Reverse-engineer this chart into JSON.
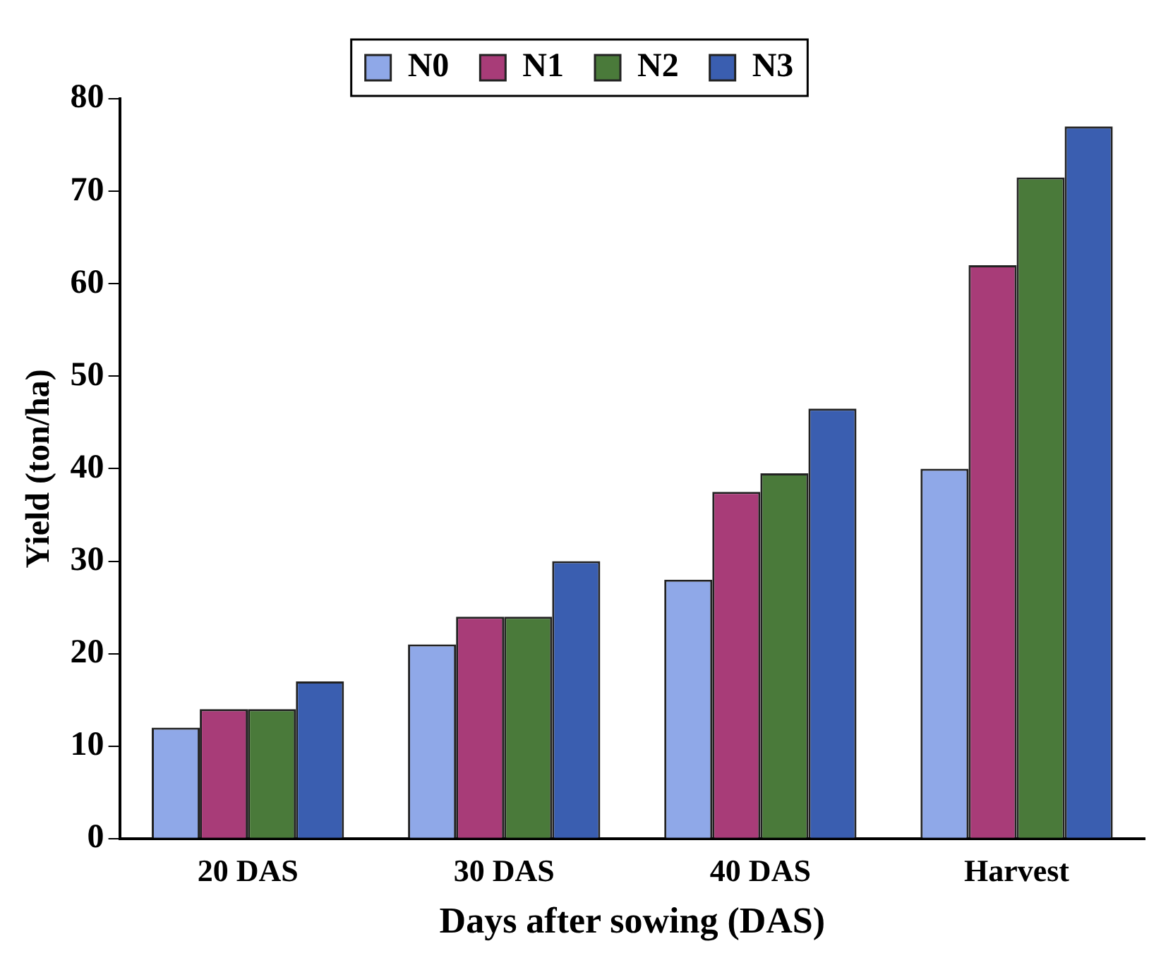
{
  "chart_data": {
    "type": "bar",
    "xlabel": "Days after sowing (DAS)",
    "ylabel": "Yield (ton/ha)",
    "categories": [
      "20 DAS",
      "30 DAS",
      "40 DAS",
      "Harvest"
    ],
    "series": [
      {
        "name": "N0",
        "color": "#8fa8e8",
        "values": [
          12,
          21,
          28,
          40
        ]
      },
      {
        "name": "N1",
        "color": "#a83c78",
        "values": [
          14,
          24,
          37.5,
          62
        ]
      },
      {
        "name": "N2",
        "color": "#4a7a3a",
        "values": [
          14,
          24,
          39.5,
          71.5
        ]
      },
      {
        "name": "N3",
        "color": "#3a5eb0",
        "values": [
          17,
          30,
          46.5,
          77
        ]
      }
    ],
    "ylim": [
      0,
      80
    ],
    "yticks": [
      0,
      10,
      20,
      30,
      40,
      50,
      60,
      70,
      80
    ],
    "grid": false,
    "legend": "top"
  }
}
